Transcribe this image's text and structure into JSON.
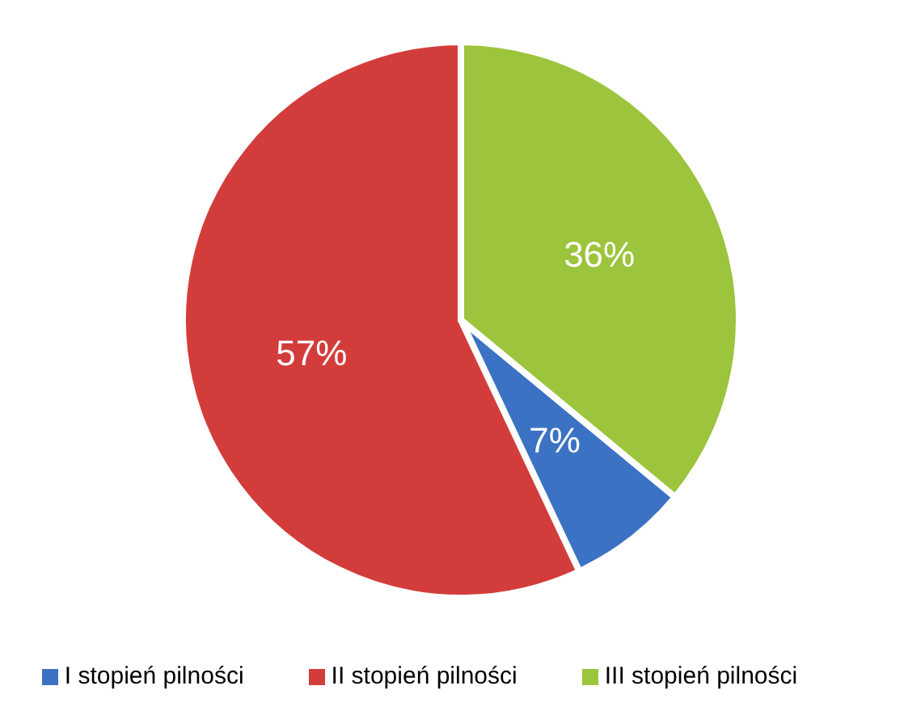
{
  "chart_data": {
    "type": "pie",
    "categories": [
      "I stopień pilności",
      "II stopień pilności",
      "III stopień pilności"
    ],
    "values": [
      7,
      57,
      36
    ],
    "colors": [
      "#3c72c4",
      "#d23d3b",
      "#9cc43c"
    ],
    "value_labels": [
      "7%",
      "57%",
      "36%"
    ],
    "legend": "bottom"
  }
}
